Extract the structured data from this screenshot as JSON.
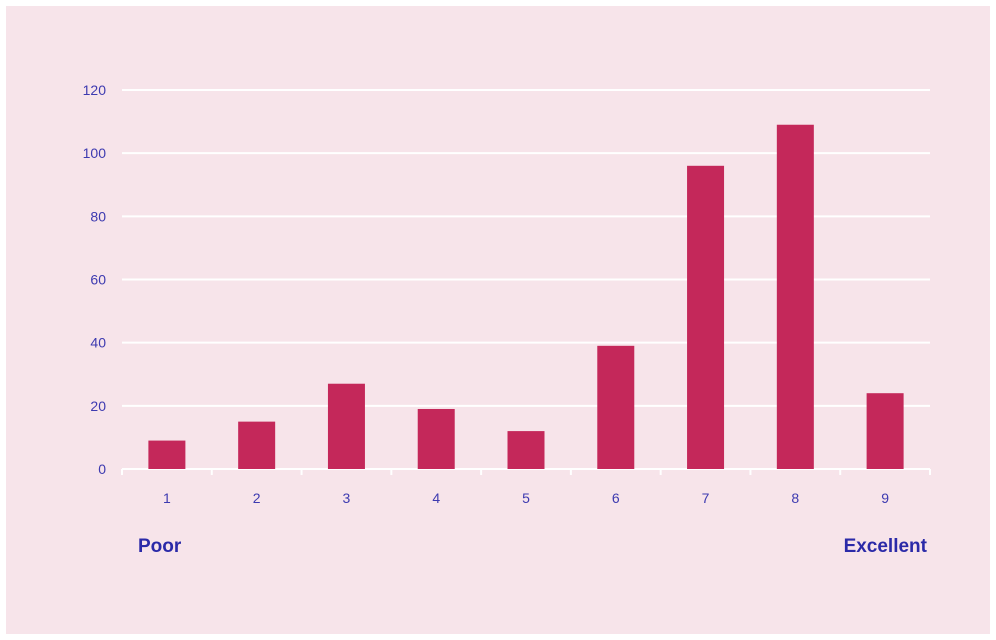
{
  "chart_data": {
    "type": "bar",
    "categories": [
      "1",
      "2",
      "3",
      "4",
      "5",
      "6",
      "7",
      "8",
      "9"
    ],
    "values": [
      9,
      15,
      27,
      19,
      12,
      39,
      96,
      109,
      24
    ],
    "ylim": [
      0,
      120
    ],
    "yticks": [
      "0",
      "20",
      "40",
      "60",
      "80",
      "100",
      "120"
    ],
    "grid": true,
    "scale_labels": {
      "low": "Poor",
      "high": "Excellent"
    },
    "colors": {
      "background": "#f7e4ea",
      "bar": "#c4285a",
      "grid": "#ffffff",
      "text": "#3d3ab0"
    }
  }
}
